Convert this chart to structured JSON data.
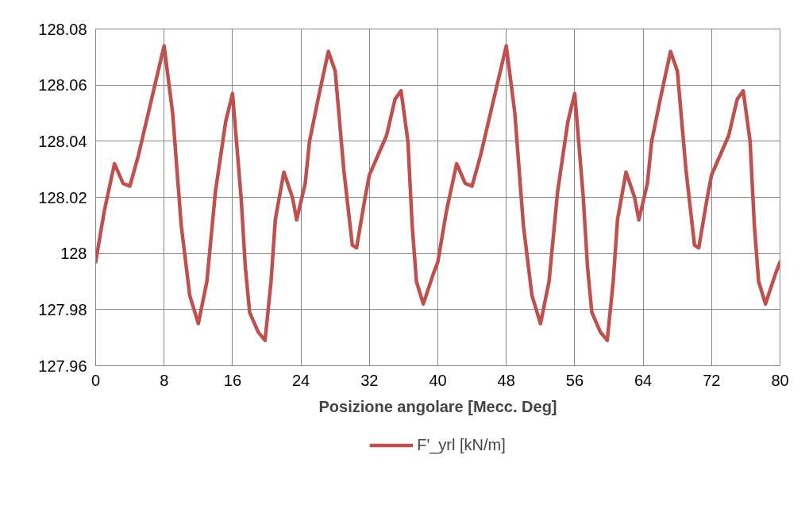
{
  "chart_data": {
    "type": "line",
    "xlabel": "Posizione angolare [Mecc. Deg]",
    "x": [
      0,
      1,
      2.2,
      3.2,
      4,
      5,
      6,
      8,
      9,
      10,
      11,
      12,
      13,
      14,
      15.2,
      16,
      17,
      17.5,
      18,
      19,
      19.8,
      20.5,
      21,
      22,
      23,
      23.5,
      24.5,
      25,
      26,
      27.2,
      28,
      29,
      30,
      30.5,
      31.5,
      32,
      33,
      34,
      35,
      35.7,
      36.5,
      37,
      37.5,
      38.3,
      39.5,
      40,
      41,
      42.2,
      43.2,
      44,
      45,
      46,
      48,
      49,
      50,
      51,
      52,
      53,
      54,
      55.2,
      56,
      57,
      57.5,
      58,
      59,
      59.8,
      60.5,
      61,
      62,
      63,
      63.5,
      64.5,
      65,
      66,
      67.2,
      68,
      69,
      70,
      70.5,
      71.5,
      72,
      73,
      74,
      75,
      75.7,
      76.5,
      77,
      77.5,
      78.3,
      79.5,
      80
    ],
    "series": [
      {
        "name": "F'_yrl [kN/m]",
        "color": "#c0504d",
        "values": [
          127.997,
          128.015,
          128.032,
          128.025,
          128.024,
          128.035,
          128.048,
          128.074,
          128.05,
          128.01,
          127.985,
          127.975,
          127.99,
          128.022,
          128.047,
          128.057,
          128.02,
          127.995,
          127.979,
          127.972,
          127.969,
          127.99,
          128.012,
          128.029,
          128.02,
          128.012,
          128.025,
          128.04,
          128.055,
          128.072,
          128.065,
          128.03,
          128.003,
          128.002,
          128.02,
          128.028,
          128.035,
          128.042,
          128.055,
          128.058,
          128.04,
          128.01,
          127.99,
          127.982,
          127.993,
          127.997,
          128.015,
          128.032,
          128.025,
          128.024,
          128.035,
          128.048,
          128.074,
          128.05,
          128.01,
          127.985,
          127.975,
          127.99,
          128.022,
          128.047,
          128.057,
          128.02,
          127.995,
          127.979,
          127.972,
          127.969,
          127.99,
          128.012,
          128.029,
          128.02,
          128.012,
          128.025,
          128.04,
          128.055,
          128.072,
          128.065,
          128.03,
          128.003,
          128.002,
          128.02,
          128.028,
          128.035,
          128.042,
          128.055,
          128.058,
          128.04,
          128.01,
          127.99,
          127.982,
          127.993,
          127.997
        ]
      }
    ],
    "xlim": [
      0,
      80
    ],
    "xticks": [
      0,
      8,
      16,
      24,
      32,
      40,
      48,
      56,
      64,
      72,
      80
    ],
    "ylim": [
      127.96,
      128.08
    ],
    "yticks": [
      127.96,
      127.98,
      {
        "value": 128,
        "label": "128"
      },
      128.02,
      128.04,
      128.06,
      128.08
    ],
    "grid": true,
    "legend": "bottom",
    "marker": "none",
    "line_style": "solid"
  }
}
